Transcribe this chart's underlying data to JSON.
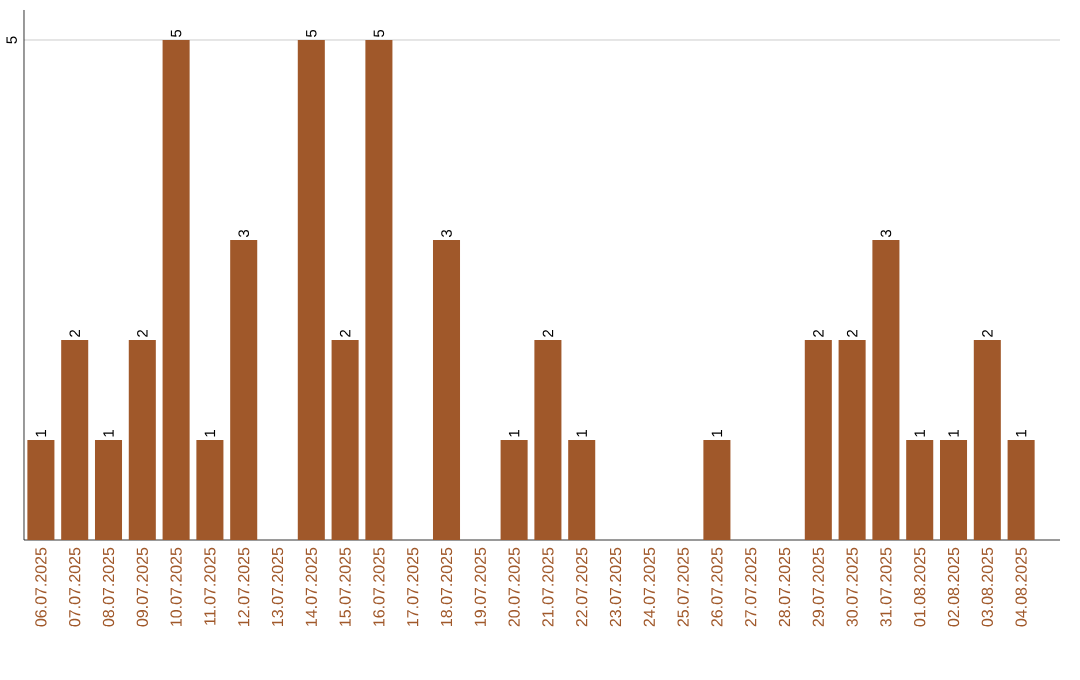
{
  "chart_data": {
    "type": "bar",
    "categories": [
      "06.07.2025",
      "07.07.2025",
      "08.07.2025",
      "09.07.2025",
      "10.07.2025",
      "11.07.2025",
      "12.07.2025",
      "13.07.2025",
      "14.07.2025",
      "15.07.2025",
      "16.07.2025",
      "17.07.2025",
      "18.07.2025",
      "19.07.2025",
      "20.07.2025",
      "21.07.2025",
      "22.07.2025",
      "23.07.2025",
      "24.07.2025",
      "25.07.2025",
      "26.07.2025",
      "27.07.2025",
      "28.07.2025",
      "29.07.2025",
      "30.07.2025",
      "31.07.2025",
      "01.08.2025",
      "02.08.2025",
      "03.08.2025",
      "04.08.2025"
    ],
    "values": [
      1,
      2,
      1,
      2,
      5,
      1,
      3,
      null,
      5,
      2,
      5,
      null,
      3,
      null,
      1,
      2,
      1,
      null,
      null,
      null,
      1,
      null,
      null,
      2,
      2,
      3,
      1,
      1,
      2,
      1
    ],
    "color": "#a0582a",
    "ylim": [
      0,
      5.3
    ],
    "yticks": [
      5
    ],
    "grid": "y",
    "data_labels": true
  }
}
